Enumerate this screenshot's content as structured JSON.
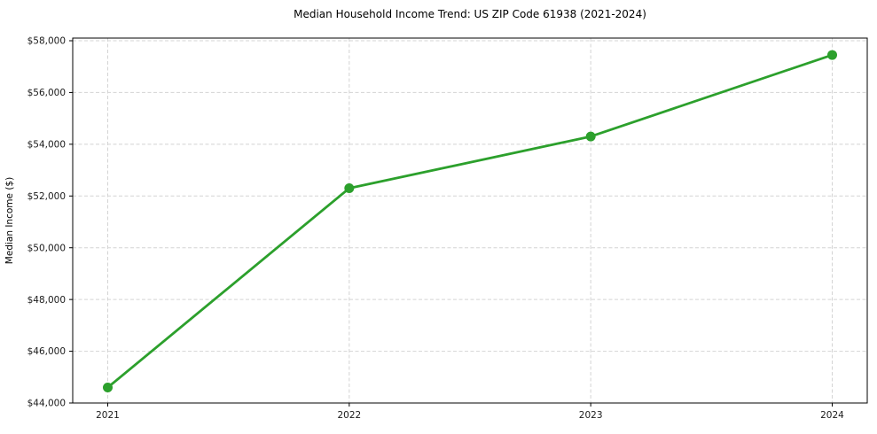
{
  "chart_data": {
    "type": "line",
    "title": "Median Household Income Trend: US ZIP Code 61938 (2021-2024)",
    "xlabel": "",
    "ylabel": "Median Income ($)",
    "categories": [
      "2021",
      "2022",
      "2023",
      "2024"
    ],
    "values": [
      44600,
      52300,
      54300,
      57450
    ],
    "value_labels": [
      "$44,600",
      "$52,300",
      "$54,300",
      "$57,450"
    ],
    "ylim": [
      44000,
      58000
    ],
    "yticks": [
      {
        "value": 44000,
        "label": "$44,000"
      },
      {
        "value": 46000,
        "label": "$46,000"
      },
      {
        "value": 48000,
        "label": "$48,000"
      },
      {
        "value": 50000,
        "label": "$50,000"
      },
      {
        "value": 52000,
        "label": "$52,000"
      },
      {
        "value": 54000,
        "label": "$54,000"
      },
      {
        "value": 56000,
        "label": "$56,000"
      },
      {
        "value": 58000,
        "label": "$58,000"
      }
    ],
    "grid": true,
    "grid_style": "dashed",
    "legend_position": "none",
    "marker": "circle",
    "colors": {
      "line": "#2ca02c",
      "marker": "#2ca02c",
      "grid": "#d4d4d4",
      "axis": "#000000",
      "text": "#1a1a1a",
      "background": "#ffffff"
    }
  }
}
